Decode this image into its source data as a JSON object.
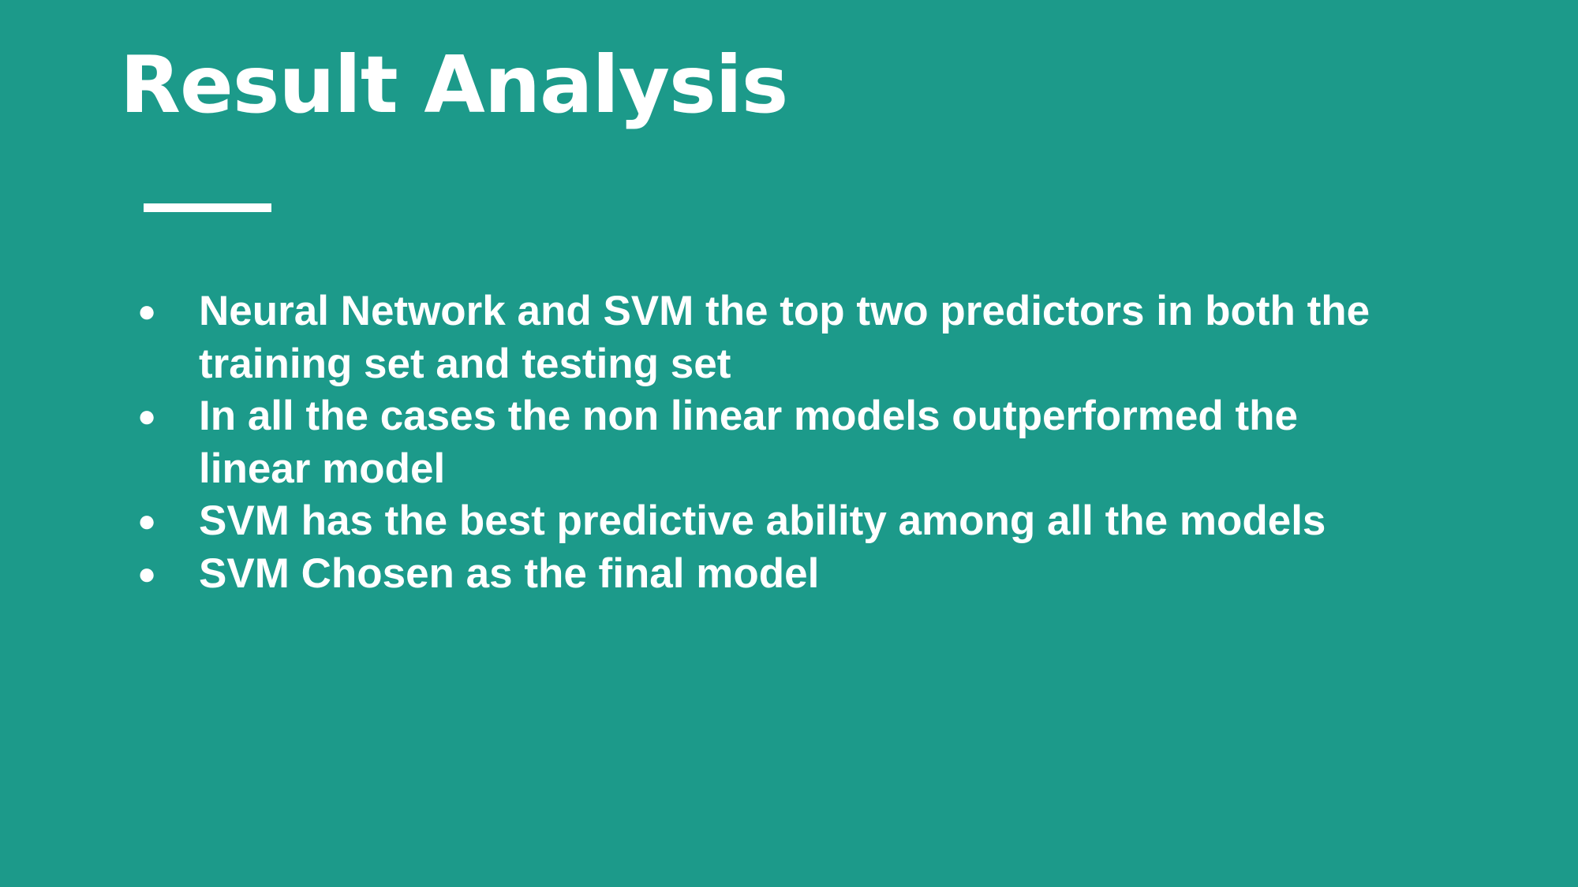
{
  "slide": {
    "title": "Result Analysis",
    "bullet_glyph": "●",
    "bullets": [
      "Neural Network and SVM the top two predictors in both the training set and testing set",
      "In all the cases the non linear models outperformed the linear model",
      "SVM has the best predictive ability among all the models",
      "SVM Chosen as the final model"
    ]
  },
  "colors": {
    "background": "#1c9a8a",
    "text": "#ffffff"
  }
}
